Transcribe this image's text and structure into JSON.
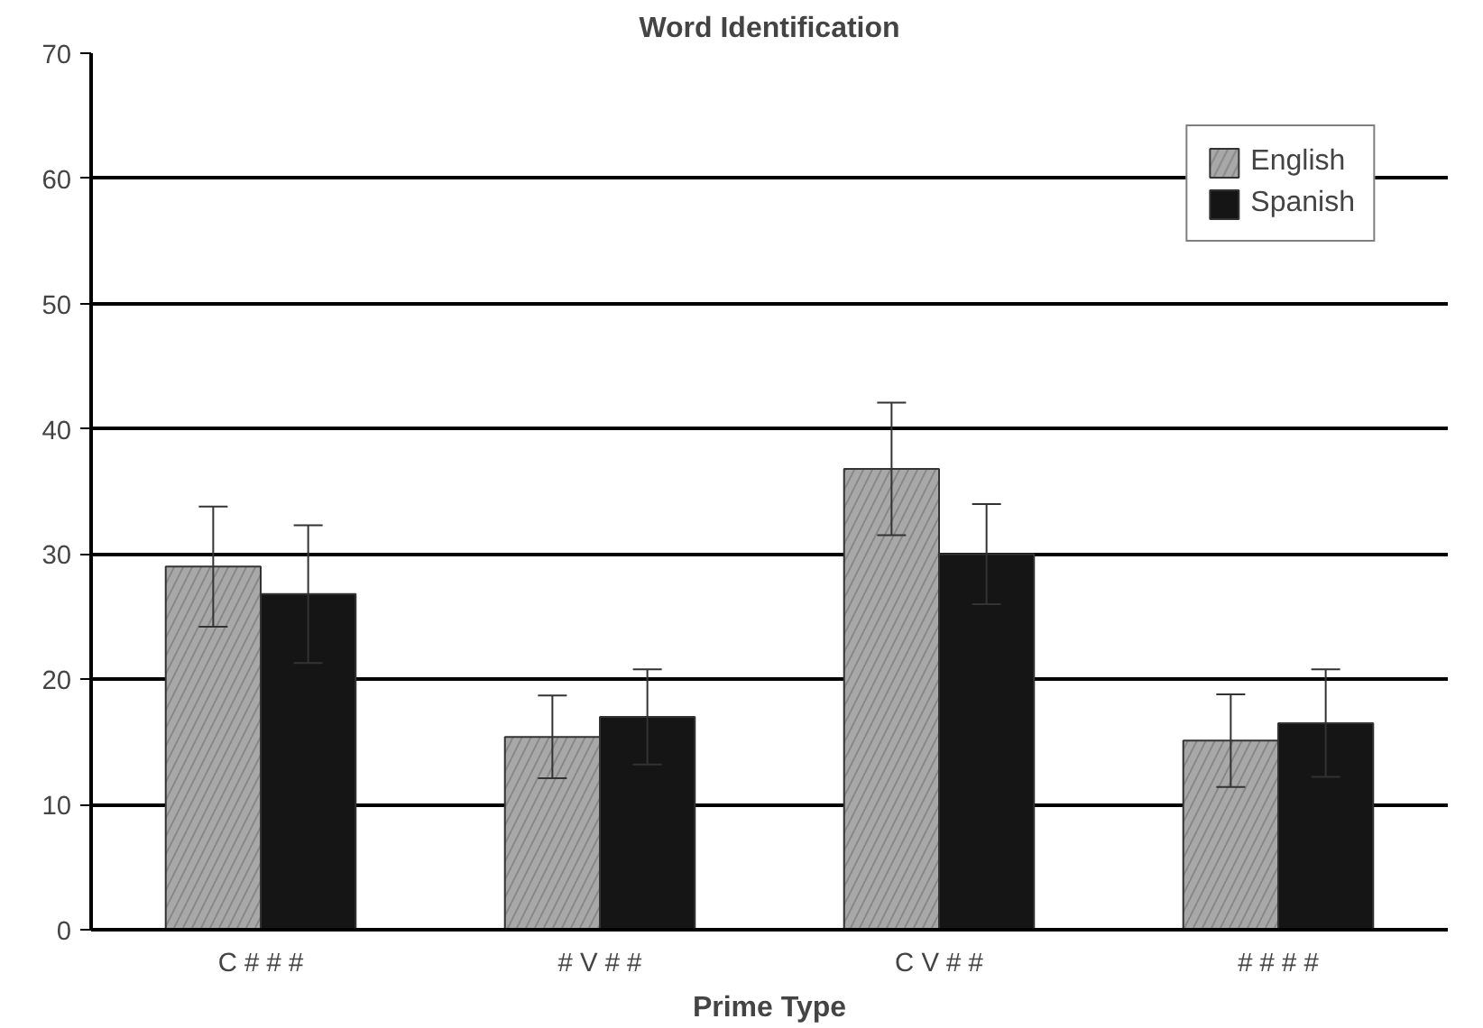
{
  "chart_data": {
    "type": "bar",
    "title": "Word Identification",
    "xlabel": "Prime Type",
    "categories": [
      "C # # #",
      "# V # #",
      "C V # #",
      "# # # #"
    ],
    "series": [
      {
        "name": "English",
        "color": "#a8a8a8",
        "values": [
          29,
          15.4,
          36.8,
          15.1
        ],
        "errors": [
          4.8,
          3.3,
          5.3,
          3.7
        ]
      },
      {
        "name": "Spanish",
        "color": "#151515",
        "values": [
          26.8,
          17,
          30,
          16.5
        ],
        "errors": [
          5.5,
          3.8,
          4,
          4.3
        ]
      }
    ],
    "ylim": [
      0,
      70
    ],
    "yticks": [
      0,
      10,
      20,
      30,
      40,
      50,
      60,
      70
    ],
    "grid": "y",
    "legend": "top right"
  }
}
